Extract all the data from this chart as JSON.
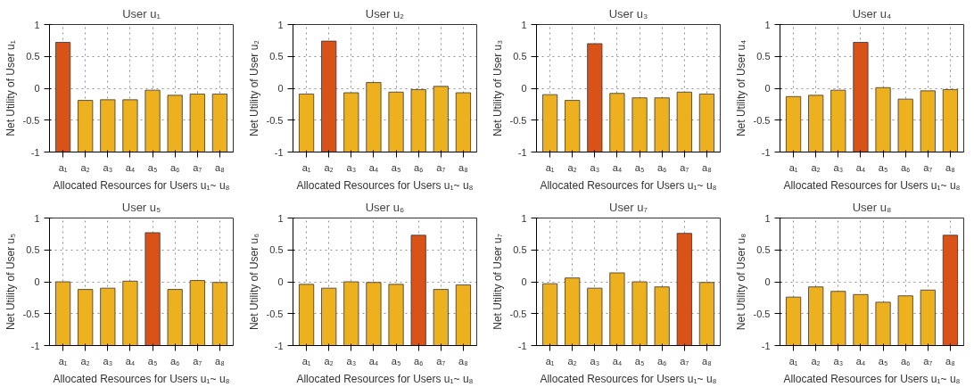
{
  "chart_data": [
    {
      "type": "bar",
      "title": "User u₁",
      "xlabel": "Allocated Resources for Users u₁~ u₈",
      "ylabel": "Net Utility of User u₁",
      "categories": [
        "a₁",
        "a₂",
        "a₃",
        "a₄",
        "a₅",
        "a₆",
        "a₇",
        "a₈"
      ],
      "base": [
        -1,
        -1,
        -1,
        -1,
        -1,
        -1,
        -1,
        -1
      ],
      "values": [
        1.72,
        0.81,
        0.82,
        0.82,
        0.97,
        0.89,
        0.91,
        0.91
      ],
      "colors": [
        "#d95319",
        "#edb120",
        "#edb120",
        "#edb120",
        "#edb120",
        "#edb120",
        "#edb120",
        "#edb120"
      ],
      "ylim": [
        -1,
        1
      ],
      "yticks": [
        -1,
        -0.5,
        0,
        0.5,
        1
      ],
      "grid": true
    },
    {
      "type": "bar",
      "title": "User u₂",
      "xlabel": "Allocated Resources for Users u₁~ u₈",
      "ylabel": "Net Utility of User u₂",
      "categories": [
        "a₁",
        "a₂",
        "a₃",
        "a₄",
        "a₅",
        "a₆",
        "a₇",
        "a₈"
      ],
      "base": [
        -1,
        -1,
        -1,
        -1,
        -1,
        -1,
        -1,
        -1
      ],
      "values": [
        0.91,
        1.74,
        0.93,
        1.09,
        0.94,
        0.98,
        1.03,
        0.93
      ],
      "colors": [
        "#edb120",
        "#d95319",
        "#edb120",
        "#edb120",
        "#edb120",
        "#edb120",
        "#edb120",
        "#edb120"
      ],
      "ylim": [
        -1,
        1
      ],
      "yticks": [
        -1,
        -0.5,
        0,
        0.5,
        1
      ],
      "grid": true
    },
    {
      "type": "bar",
      "title": "User u₃",
      "xlabel": "Allocated Resources for Users u₁~ u₈",
      "ylabel": "Net Utility of User u₃",
      "categories": [
        "a₁",
        "a₂",
        "a₃",
        "a₄",
        "a₅",
        "a₆",
        "a₇",
        "a₈"
      ],
      "base": [
        -1,
        -1,
        -1,
        -1,
        -1,
        -1,
        -1,
        -1
      ],
      "values": [
        0.9,
        0.81,
        1.7,
        0.92,
        0.85,
        0.85,
        0.94,
        0.91
      ],
      "colors": [
        "#edb120",
        "#edb120",
        "#d95319",
        "#edb120",
        "#edb120",
        "#edb120",
        "#edb120",
        "#edb120"
      ],
      "ylim": [
        -1,
        1
      ],
      "yticks": [
        -1,
        -0.5,
        0,
        0.5,
        1
      ],
      "grid": true
    },
    {
      "type": "bar",
      "title": "User u₄",
      "xlabel": "Allocated Resources for Users u₁~ u₈",
      "ylabel": "Net Utility of User u₄",
      "categories": [
        "a₁",
        "a₂",
        "a₃",
        "a₄",
        "a₅",
        "a₆",
        "a₇",
        "a₈"
      ],
      "base": [
        -1,
        -1,
        -1,
        -1,
        -1,
        -1,
        -1,
        -1
      ],
      "values": [
        0.87,
        0.89,
        0.97,
        1.72,
        1.01,
        0.83,
        0.96,
        0.98
      ],
      "colors": [
        "#edb120",
        "#edb120",
        "#edb120",
        "#d95319",
        "#edb120",
        "#edb120",
        "#edb120",
        "#edb120"
      ],
      "ylim": [
        -1,
        1
      ],
      "yticks": [
        -1,
        -0.5,
        0,
        0.5,
        1
      ],
      "grid": true
    },
    {
      "type": "bar",
      "title": "User u₅",
      "xlabel": "Allocated Resources for Users u₁~ u₈",
      "ylabel": "Net Utility of User u₅",
      "categories": [
        "a₁",
        "a₂",
        "a₃",
        "a₄",
        "a₅",
        "a₆",
        "a₇",
        "a₈"
      ],
      "base": [
        -1,
        -1,
        -1,
        -1,
        -1,
        -1,
        -1,
        -1
      ],
      "values": [
        1.0,
        0.88,
        0.9,
        1.01,
        1.77,
        0.88,
        1.02,
        0.99
      ],
      "colors": [
        "#edb120",
        "#edb120",
        "#edb120",
        "#edb120",
        "#d95319",
        "#edb120",
        "#edb120",
        "#edb120"
      ],
      "ylim": [
        -1,
        1
      ],
      "yticks": [
        -1,
        -0.5,
        0,
        0.5,
        1
      ],
      "grid": true
    },
    {
      "type": "bar",
      "title": "User u₆",
      "xlabel": "Allocated Resources for Users u₁~ u₈",
      "ylabel": "Net Utility of User u₆",
      "categories": [
        "a₁",
        "a₂",
        "a₃",
        "a₄",
        "a₅",
        "a₆",
        "a₇",
        "a₈"
      ],
      "base": [
        -1,
        -1,
        -1,
        -1,
        -1,
        -1,
        -1,
        -1
      ],
      "values": [
        0.96,
        0.9,
        1.0,
        0.99,
        0.96,
        1.73,
        0.88,
        0.95
      ],
      "colors": [
        "#edb120",
        "#edb120",
        "#edb120",
        "#edb120",
        "#edb120",
        "#d95319",
        "#edb120",
        "#edb120"
      ],
      "ylim": [
        -1,
        1
      ],
      "yticks": [
        -1,
        -0.5,
        0,
        0.5,
        1
      ],
      "grid": true
    },
    {
      "type": "bar",
      "title": "User u₇",
      "xlabel": "Allocated Resources for Users u₁~ u₈",
      "ylabel": "Net Utility of User u₇",
      "categories": [
        "a₁",
        "a₂",
        "a₃",
        "a₄",
        "a₅",
        "a₆",
        "a₇",
        "a₈"
      ],
      "base": [
        -1,
        -1,
        -1,
        -1,
        -1,
        -1,
        -1,
        -1
      ],
      "values": [
        0.97,
        1.06,
        0.9,
        1.14,
        1.0,
        0.92,
        1.76,
        0.99
      ],
      "colors": [
        "#edb120",
        "#edb120",
        "#edb120",
        "#edb120",
        "#edb120",
        "#edb120",
        "#d95319",
        "#edb120"
      ],
      "ylim": [
        -1,
        1
      ],
      "yticks": [
        -1,
        -0.5,
        0,
        0.5,
        1
      ],
      "grid": true
    },
    {
      "type": "bar",
      "title": "User u₈",
      "xlabel": "Allocated Resources for Users u₁~ u₈",
      "ylabel": "Net Utility of User u₈",
      "categories": [
        "a₁",
        "a₂",
        "a₃",
        "a₄",
        "a₅",
        "a₆",
        "a₇",
        "a₈"
      ],
      "base": [
        -1,
        -1,
        -1,
        -1,
        -1,
        -1,
        -1,
        -1
      ],
      "values": [
        0.76,
        0.92,
        0.85,
        0.8,
        0.68,
        0.78,
        0.87,
        1.73
      ],
      "colors": [
        "#edb120",
        "#edb120",
        "#edb120",
        "#edb120",
        "#edb120",
        "#edb120",
        "#edb120",
        "#d95319"
      ],
      "ylim": [
        -1,
        1
      ],
      "yticks": [
        -1,
        -0.5,
        0,
        0.5,
        1
      ],
      "grid": true
    }
  ]
}
